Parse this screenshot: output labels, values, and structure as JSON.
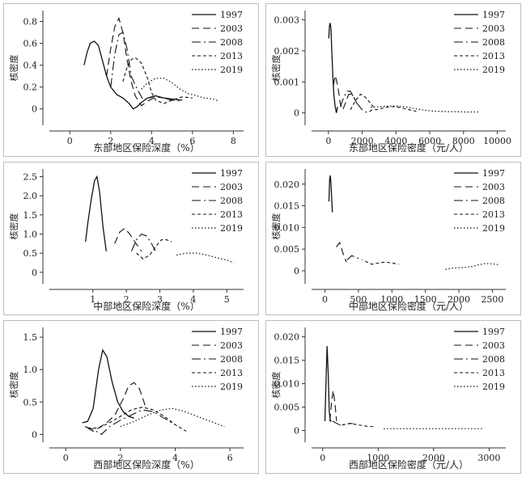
{
  "legend": [
    "1997",
    "2003",
    "2008",
    "2013",
    "2019"
  ],
  "colors": {
    "line": "#111111",
    "axis": "#333333",
    "frame": "#bdbdbd",
    "text": "#222222"
  },
  "chart_data": [
    {
      "type": "line",
      "ylabel": "核密度",
      "xlabel": "东部地区保险深度（%）",
      "xlim": [
        -1,
        8.5
      ],
      "ylim": [
        -0.15,
        0.9
      ],
      "xticks": [
        0,
        2,
        4,
        6,
        8
      ],
      "yticks": [
        0,
        0.2,
        0.4,
        0.6,
        0.8
      ],
      "xtick_labels": [
        "0",
        "2",
        "4",
        "6",
        "8"
      ],
      "ytick_labels": [
        "0",
        "0.2",
        "0.4",
        "0.6",
        "0.8"
      ],
      "legend_position": "top-right",
      "series": [
        {
          "name": "1997",
          "x": [
            0.7,
            0.85,
            1.0,
            1.2,
            1.4,
            1.6,
            1.8,
            2.0,
            2.3,
            2.6,
            2.9,
            3.1,
            3.3,
            3.5,
            3.8,
            4.2,
            4.6,
            5.0,
            5.5
          ],
          "y": [
            0.4,
            0.52,
            0.6,
            0.62,
            0.58,
            0.44,
            0.3,
            0.2,
            0.13,
            0.1,
            0.05,
            0.0,
            0.02,
            0.06,
            0.1,
            0.12,
            0.1,
            0.09,
            0.08
          ]
        },
        {
          "name": "2003",
          "x": [
            1.8,
            2.0,
            2.2,
            2.4,
            2.6,
            2.8,
            3.0,
            3.2,
            3.5,
            3.8,
            4.2,
            4.6
          ],
          "y": [
            0.3,
            0.55,
            0.75,
            0.83,
            0.7,
            0.45,
            0.25,
            0.12,
            0.03,
            0.07,
            0.11,
            0.1
          ]
        },
        {
          "name": "2008",
          "x": [
            2.0,
            2.2,
            2.4,
            2.6,
            2.8,
            3.0,
            3.3,
            3.6,
            3.9,
            4.2,
            4.6,
            5.0,
            5.5
          ],
          "y": [
            0.2,
            0.5,
            0.68,
            0.7,
            0.55,
            0.3,
            0.18,
            0.08,
            0.1,
            0.12,
            0.1,
            0.08,
            0.07
          ]
        },
        {
          "name": "2013",
          "x": [
            2.6,
            2.8,
            3.0,
            3.2,
            3.5,
            3.8,
            4.0,
            4.2,
            4.6,
            5.0,
            5.5,
            6.0
          ],
          "y": [
            0.25,
            0.38,
            0.45,
            0.47,
            0.42,
            0.28,
            0.15,
            0.08,
            0.05,
            0.08,
            0.11,
            0.1
          ]
        },
        {
          "name": "2019",
          "x": [
            3.5,
            3.8,
            4.2,
            4.6,
            5.0,
            5.4,
            5.8,
            6.2,
            6.6,
            7.0,
            7.3
          ],
          "y": [
            0.18,
            0.24,
            0.28,
            0.28,
            0.24,
            0.18,
            0.14,
            0.12,
            0.1,
            0.09,
            0.07
          ]
        }
      ]
    },
    {
      "type": "line",
      "ylabel": "核密度",
      "xlabel": "东部地区保险密度（元/人）",
      "xlim": [
        -1000,
        10500
      ],
      "ylim": [
        -0.0004,
        0.0033
      ],
      "xticks": [
        0,
        2000,
        4000,
        6000,
        8000,
        10000
      ],
      "yticks": [
        0,
        0.001,
        0.002,
        0.003
      ],
      "xtick_labels": [
        "0",
        "2000",
        "4000",
        "6000",
        "8000",
        "10000"
      ],
      "ytick_labels": [
        "0",
        "0.001",
        "0.002",
        "0.003"
      ],
      "legend_position": "top-right",
      "series": [
        {
          "name": "1997",
          "x": [
            20,
            60,
            100,
            150,
            200,
            260,
            320,
            400,
            470,
            540
          ],
          "y": [
            0.0024,
            0.0028,
            0.0029,
            0.0027,
            0.002,
            0.0012,
            0.0006,
            0.0002,
            0.0,
            0.0002
          ]
        },
        {
          "name": "2003",
          "x": [
            300,
            400,
            500,
            600,
            700,
            850,
            1000,
            1200,
            1400,
            1600,
            1800
          ],
          "y": [
            0.0009,
            0.0012,
            0.001,
            0.0007,
            0.0003,
            0.0001,
            0.0003,
            0.0006,
            0.0006,
            0.0004,
            0.0002
          ]
        },
        {
          "name": "2008",
          "x": [
            700,
            900,
            1100,
            1300,
            1500,
            1700,
            2000,
            2300,
            2600
          ],
          "y": [
            0.0002,
            0.0005,
            0.0007,
            0.0007,
            0.0005,
            0.0003,
            0.0001,
            0.0,
            0.0001
          ]
        },
        {
          "name": "2013",
          "x": [
            1300,
            1600,
            1900,
            2200,
            2500,
            2800,
            3200,
            3600,
            4000,
            4400,
            4800,
            5200
          ],
          "y": [
            0.0001,
            0.0004,
            0.0006,
            0.0005,
            0.0003,
            0.0001,
            0.00015,
            0.0002,
            0.0002,
            0.00015,
            0.0001,
            5e-05
          ]
        },
        {
          "name": "2019",
          "x": [
            2500,
            3000,
            3500,
            4000,
            4500,
            5000,
            5500,
            6000,
            6500,
            7000,
            7500,
            8000,
            9000
          ],
          "y": [
            0.00018,
            0.0002,
            0.00022,
            0.00022,
            0.0002,
            0.00015,
            0.0001,
            7e-05,
            5e-05,
            4e-05,
            4e-05,
            3e-05,
            3e-05
          ]
        }
      ]
    },
    {
      "type": "line",
      "ylabel": "核密度",
      "xlabel": "中部地区保险深度（%）",
      "xlim": [
        -0.3,
        5.5
      ],
      "ylim": [
        -0.3,
        2.7
      ],
      "xticks": [
        1,
        2,
        3,
        4,
        5
      ],
      "yticks": [
        0,
        0.5,
        1.0,
        1.5,
        2.0,
        2.5
      ],
      "xtick_labels": [
        "1",
        "2",
        "3",
        "4",
        "5"
      ],
      "ytick_labels": [
        "0",
        "0.5",
        "1.0",
        "1.5",
        "2.0",
        "2.5"
      ],
      "legend_position": "top-right",
      "series": [
        {
          "name": "1997",
          "x": [
            0.78,
            0.85,
            0.95,
            1.05,
            1.12,
            1.2,
            1.3,
            1.4
          ],
          "y": [
            0.8,
            1.3,
            1.9,
            2.4,
            2.5,
            2.1,
            1.2,
            0.55
          ]
        },
        {
          "name": "2003",
          "x": [
            1.65,
            1.8,
            1.95,
            2.1,
            2.25,
            2.45
          ],
          "y": [
            0.75,
            1.05,
            1.15,
            1.0,
            0.8,
            0.55
          ]
        },
        {
          "name": "2008",
          "x": [
            2.15,
            2.3,
            2.45,
            2.6,
            2.75,
            2.9
          ],
          "y": [
            0.55,
            0.85,
            1.0,
            0.95,
            0.75,
            0.5
          ]
        },
        {
          "name": "2013",
          "x": [
            2.3,
            2.5,
            2.7,
            2.9,
            3.05,
            3.2,
            3.35
          ],
          "y": [
            0.5,
            0.35,
            0.45,
            0.7,
            0.85,
            0.85,
            0.8
          ]
        },
        {
          "name": "2019",
          "x": [
            3.5,
            3.8,
            4.1,
            4.4,
            4.7,
            5.0,
            5.2
          ],
          "y": [
            0.45,
            0.5,
            0.5,
            0.45,
            0.38,
            0.32,
            0.25
          ]
        }
      ]
    },
    {
      "type": "line",
      "ylabel": "核密度",
      "xlabel": "中部地区保险密度（元/人）",
      "xlim": [
        -200,
        2700
      ],
      "ylim": [
        -0.003,
        0.0235
      ],
      "xticks": [
        0,
        500,
        1000,
        1500,
        2000,
        2500
      ],
      "yticks": [
        0,
        0.005,
        0.01,
        0.015,
        0.02
      ],
      "xtick_labels": [
        "0",
        "500",
        "1000",
        "1500",
        "2000",
        "2500"
      ],
      "ytick_labels": [
        "0",
        "0.005",
        "0.010",
        "0.015",
        "0.020"
      ],
      "legend_position": "top-right",
      "series": [
        {
          "name": "1997",
          "x": [
            60,
            70,
            80,
            90,
            100,
            110
          ],
          "y": [
            0.016,
            0.021,
            0.022,
            0.02,
            0.017,
            0.0135
          ]
        },
        {
          "name": "2003",
          "x": [
            170,
            220,
            270,
            320
          ],
          "y": [
            0.0055,
            0.0065,
            0.004,
            0.002
          ]
        },
        {
          "name": "2008",
          "x": [
            330,
            400,
            480,
            560
          ],
          "y": [
            0.0025,
            0.0035,
            0.003,
            0.0025
          ]
        },
        {
          "name": "2013",
          "x": [
            600,
            700,
            800,
            900,
            1000,
            1100
          ],
          "y": [
            0.0022,
            0.0015,
            0.0018,
            0.002,
            0.0018,
            0.0015
          ]
        },
        {
          "name": "2019",
          "x": [
            1800,
            1900,
            2000,
            2100,
            2200,
            2300,
            2400,
            2500,
            2600
          ],
          "y": [
            0.0003,
            0.0006,
            0.0007,
            0.0008,
            0.001,
            0.0014,
            0.0017,
            0.0016,
            0.0014
          ]
        }
      ]
    },
    {
      "type": "line",
      "ylabel": "核密度",
      "xlabel": "西部地区保险深度（%）",
      "xlim": [
        -0.6,
        6.5
      ],
      "ylim": [
        -0.12,
        1.65
      ],
      "xticks": [
        0,
        2,
        4,
        6
      ],
      "yticks": [
        0,
        0.5,
        1.0,
        1.5
      ],
      "xtick_labels": [
        "0",
        "2",
        "4",
        "6"
      ],
      "ytick_labels": [
        "0",
        "0.5",
        "1.0",
        "1.5"
      ],
      "legend_position": "top-right",
      "series": [
        {
          "name": "1997",
          "x": [
            0.6,
            0.8,
            1.0,
            1.2,
            1.35,
            1.5,
            1.7,
            1.9,
            2.1,
            2.3,
            2.5
          ],
          "y": [
            0.18,
            0.2,
            0.4,
            1.0,
            1.3,
            1.2,
            0.8,
            0.5,
            0.35,
            0.28,
            0.25
          ]
        },
        {
          "name": "2003",
          "x": [
            0.8,
            1.0,
            1.2,
            1.5,
            1.8,
            2.1,
            2.3,
            2.5,
            2.7,
            2.9
          ],
          "y": [
            0.1,
            0.05,
            0.1,
            0.18,
            0.3,
            0.55,
            0.75,
            0.8,
            0.7,
            0.45
          ]
        },
        {
          "name": "2008",
          "x": [
            0.7,
            1.0,
            1.3,
            1.6,
            2.0,
            2.4,
            2.8,
            3.2,
            3.6,
            4.0
          ],
          "y": [
            0.12,
            0.08,
            0.0,
            0.12,
            0.22,
            0.3,
            0.38,
            0.35,
            0.25,
            0.15
          ]
        },
        {
          "name": "2013",
          "x": [
            0.8,
            1.2,
            1.6,
            2.0,
            2.4,
            2.8,
            3.2,
            3.6,
            4.0,
            4.4
          ],
          "y": [
            0.1,
            0.1,
            0.18,
            0.28,
            0.38,
            0.42,
            0.38,
            0.28,
            0.15,
            0.05
          ]
        },
        {
          "name": "2019",
          "x": [
            2.0,
            2.5,
            3.0,
            3.5,
            3.9,
            4.3,
            4.8,
            5.3,
            5.8
          ],
          "y": [
            0.12,
            0.2,
            0.3,
            0.38,
            0.4,
            0.36,
            0.28,
            0.2,
            0.12
          ]
        }
      ]
    },
    {
      "type": "line",
      "ylabel": "核密度",
      "xlabel": "西部地区保险密度（元/人）",
      "xlim": [
        -200,
        3300
      ],
      "ylim": [
        -0.0025,
        0.022
      ],
      "xticks": [
        0,
        1000,
        2000,
        3000
      ],
      "yticks": [
        0,
        0.005,
        0.01,
        0.015,
        0.02
      ],
      "xtick_labels": [
        "0",
        "1000",
        "2000",
        "3000"
      ],
      "ytick_labels": [
        "0",
        "0.005",
        "0.010",
        "0.015",
        "0.020"
      ],
      "legend_position": "top-right",
      "series": [
        {
          "name": "1997",
          "x": [
            40,
            60,
            80,
            100,
            120,
            140,
            160
          ],
          "y": [
            0.002,
            0.01,
            0.018,
            0.012,
            0.004,
            0.002,
            0.002
          ]
        },
        {
          "name": "2003",
          "x": [
            130,
            160,
            190,
            220,
            250
          ],
          "y": [
            0.002,
            0.006,
            0.0085,
            0.006,
            0.002
          ]
        },
        {
          "name": "2008",
          "x": [
            180,
            260,
            340,
            440,
            540
          ],
          "y": [
            0.002,
            0.0015,
            0.001,
            0.0015,
            0.0015
          ]
        },
        {
          "name": "2013",
          "x": [
            350,
            500,
            650,
            800,
            950
          ],
          "y": [
            0.0012,
            0.0015,
            0.0012,
            0.0009,
            0.0008
          ]
        },
        {
          "name": "2019",
          "x": [
            1100,
            1500,
            2000,
            2500,
            2900
          ],
          "y": [
            0.0004,
            0.0004,
            0.0004,
            0.0004,
            0.0004
          ]
        }
      ]
    }
  ]
}
